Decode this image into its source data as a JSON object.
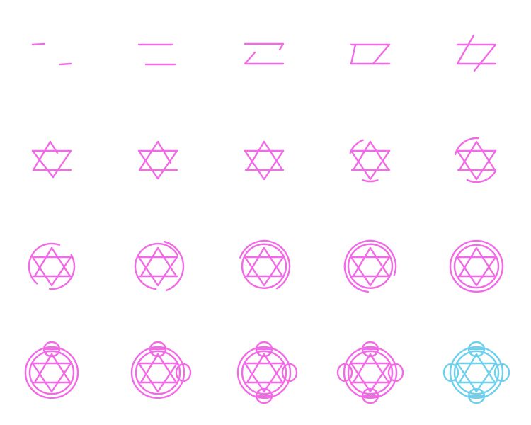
{
  "sequence": {
    "name": "hexagram-seal-drawing-steps",
    "rows": 4,
    "columns": 5,
    "frame_count": 20,
    "stroke_color": "#f26ae6",
    "final_stroke_color": "#6fd0ee",
    "background_color": "#ffffff",
    "frames": [
      {
        "step": 1
      },
      {
        "step": 2
      },
      {
        "step": 3
      },
      {
        "step": 4
      },
      {
        "step": 5
      },
      {
        "step": 6
      },
      {
        "step": 7
      },
      {
        "step": 8
      },
      {
        "step": 9
      },
      {
        "step": 10
      },
      {
        "step": 11
      },
      {
        "step": 12
      },
      {
        "step": 13
      },
      {
        "step": 14
      },
      {
        "step": 15
      },
      {
        "step": 16
      },
      {
        "step": 17
      },
      {
        "step": 18
      },
      {
        "step": 19
      },
      {
        "step": 20
      }
    ]
  }
}
